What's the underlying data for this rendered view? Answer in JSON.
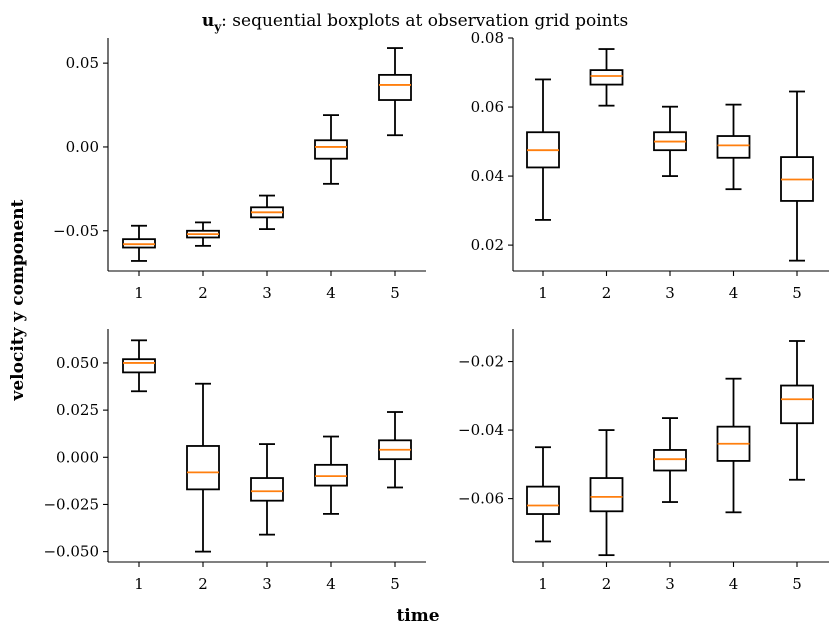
{
  "title": {
    "symbol": "u",
    "subscript": "y",
    "text": ": sequential boxplots at observation grid points"
  },
  "xlabel": "time",
  "ylabel": "velocity y component",
  "colors": {
    "box": "#000000",
    "median": "#ff7f0e"
  },
  "chart_data": [
    {
      "type": "boxplot",
      "position": "top-left",
      "categories": [
        "1",
        "2",
        "3",
        "4",
        "5"
      ],
      "ylim": [
        -0.074,
        0.065
      ],
      "yticks": [
        -0.05,
        0.0,
        0.05
      ],
      "ytick_labels": [
        "−0.05",
        "0.00",
        "0.05"
      ],
      "boxes": [
        {
          "whislo": -0.068,
          "q1": -0.06,
          "med": -0.058,
          "q3": -0.055,
          "whishi": -0.047
        },
        {
          "whislo": -0.059,
          "q1": -0.054,
          "med": -0.052,
          "q3": -0.05,
          "whishi": -0.045
        },
        {
          "whislo": -0.049,
          "q1": -0.042,
          "med": -0.039,
          "q3": -0.036,
          "whishi": -0.029
        },
        {
          "whislo": -0.022,
          "q1": -0.007,
          "med": 0.0,
          "q3": 0.004,
          "whishi": 0.019
        },
        {
          "whislo": 0.007,
          "q1": 0.028,
          "med": 0.037,
          "q3": 0.043,
          "whishi": 0.059
        }
      ]
    },
    {
      "type": "boxplot",
      "position": "top-right",
      "categories": [
        "1",
        "2",
        "3",
        "4",
        "5"
      ],
      "ylim": [
        0.0125,
        0.08
      ],
      "yticks": [
        0.02,
        0.04,
        0.06,
        0.08
      ],
      "ytick_labels": [
        "0.02",
        "0.04",
        "0.06",
        "0.08"
      ],
      "boxes": [
        {
          "whislo": 0.0273,
          "q1": 0.0425,
          "med": 0.0475,
          "q3": 0.0527,
          "whishi": 0.068
        },
        {
          "whislo": 0.0604,
          "q1": 0.0665,
          "med": 0.069,
          "q3": 0.0707,
          "whishi": 0.0768
        },
        {
          "whislo": 0.04,
          "q1": 0.0475,
          "med": 0.05,
          "q3": 0.0527,
          "whishi": 0.0601
        },
        {
          "whislo": 0.0362,
          "q1": 0.0453,
          "med": 0.0489,
          "q3": 0.0516,
          "whishi": 0.0607
        },
        {
          "whislo": 0.0155,
          "q1": 0.0328,
          "med": 0.039,
          "q3": 0.0455,
          "whishi": 0.0645
        }
      ]
    },
    {
      "type": "boxplot",
      "position": "bottom-left",
      "categories": [
        "1",
        "2",
        "3",
        "4",
        "5"
      ],
      "ylim": [
        -0.0555,
        0.068
      ],
      "yticks": [
        -0.05,
        -0.025,
        0.0,
        0.025,
        0.05
      ],
      "ytick_labels": [
        "−0.050",
        "−0.025",
        "0.000",
        "0.025",
        "0.050"
      ],
      "boxes": [
        {
          "whislo": 0.035,
          "q1": 0.045,
          "med": 0.05,
          "q3": 0.052,
          "whishi": 0.062
        },
        {
          "whislo": -0.05,
          "q1": -0.017,
          "med": -0.008,
          "q3": 0.006,
          "whishi": 0.039
        },
        {
          "whislo": -0.041,
          "q1": -0.023,
          "med": -0.018,
          "q3": -0.011,
          "whishi": 0.007
        },
        {
          "whislo": -0.03,
          "q1": -0.015,
          "med": -0.01,
          "q3": -0.004,
          "whishi": 0.011
        },
        {
          "whislo": -0.016,
          "q1": -0.001,
          "med": 0.004,
          "q3": 0.009,
          "whishi": 0.024
        }
      ]
    },
    {
      "type": "boxplot",
      "position": "bottom-right",
      "categories": [
        "1",
        "2",
        "3",
        "4",
        "5"
      ],
      "ylim": [
        -0.0785,
        -0.0105
      ],
      "yticks": [
        -0.06,
        -0.04,
        -0.02
      ],
      "ytick_labels": [
        "−0.06",
        "−0.04",
        "−0.02"
      ],
      "boxes": [
        {
          "whislo": -0.0725,
          "q1": -0.0645,
          "med": -0.062,
          "q3": -0.0565,
          "whishi": -0.045
        },
        {
          "whislo": -0.0765,
          "q1": -0.0637,
          "med": -0.0595,
          "q3": -0.054,
          "whishi": -0.04
        },
        {
          "whislo": -0.061,
          "q1": -0.0518,
          "med": -0.0485,
          "q3": -0.0458,
          "whishi": -0.0365
        },
        {
          "whislo": -0.064,
          "q1": -0.049,
          "med": -0.044,
          "q3": -0.039,
          "whishi": -0.025
        },
        {
          "whislo": -0.0545,
          "q1": -0.038,
          "med": -0.031,
          "q3": -0.027,
          "whishi": -0.014
        }
      ]
    }
  ]
}
